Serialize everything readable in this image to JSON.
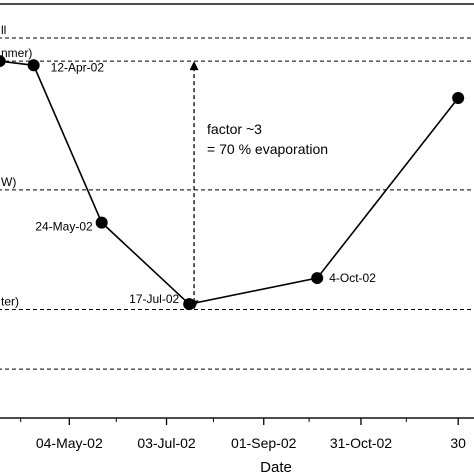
{
  "chart_data": {
    "type": "line",
    "xlabel": "Date",
    "x_ticks": [
      "04-May-02",
      "03-Jul-02",
      "01-Sep-02",
      "31-Oct-02",
      "30"
    ],
    "x_tick_dates": [
      "2002-05-04",
      "2002-07-03",
      "2002-09-01",
      "2002-10-31",
      "2002-12-30"
    ],
    "x_range": [
      "2002-03-21",
      "2003-01-10"
    ],
    "y_range": [
      0,
      1
    ],
    "y_scale_note": "relative level, no numeric tick labels visible",
    "grid": false,
    "series": [
      {
        "points": [
          {
            "date": "2002-03-22",
            "y": 0.862,
            "label": ""
          },
          {
            "date": "2002-04-12",
            "y": 0.852,
            "label": "12-Apr-02"
          },
          {
            "date": "2002-05-24",
            "y": 0.472,
            "label": "24-May-02"
          },
          {
            "date": "2002-07-17",
            "y": 0.275,
            "label": "17-Jul-02"
          },
          {
            "date": "2002-10-04",
            "y": 0.338,
            "label": "4-Oct-02"
          },
          {
            "date": "2002-12-30",
            "y": 0.773,
            "label": ""
          }
        ]
      }
    ],
    "reference_lines": [
      {
        "y": 0.918,
        "label": "ll"
      },
      {
        "y": 0.862,
        "label": "nmer)"
      },
      {
        "y": 0.551,
        "label": "W)"
      },
      {
        "y": 0.262,
        "label": "ter)"
      },
      {
        "y": 0.118,
        "label": ""
      }
    ],
    "annotation": {
      "lines": [
        "factor ~3",
        "= 70 % evaporation"
      ],
      "arrow_from_y": 0.862,
      "arrow_to_y": 0.262,
      "arrow_date": "2002-07-20"
    }
  }
}
